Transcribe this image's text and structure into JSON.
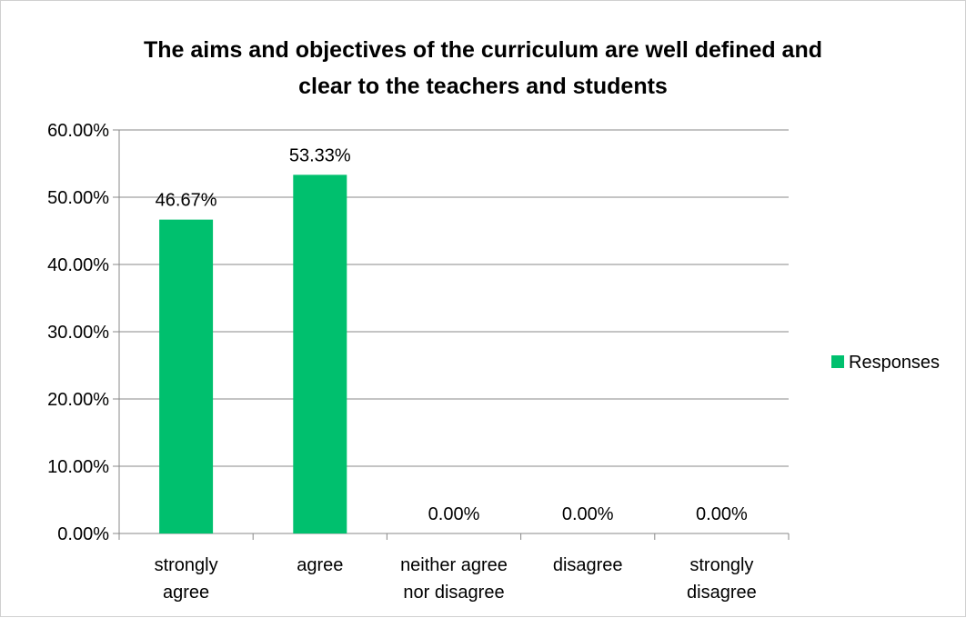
{
  "chart_data": {
    "type": "bar",
    "title_lines": [
      "The aims and objectives of the curriculum are well defined and",
      "clear to the teachers and students"
    ],
    "categories": [
      [
        "strongly",
        "agree"
      ],
      [
        "agree"
      ],
      [
        "neither agree",
        "nor disagree"
      ],
      [
        "disagree"
      ],
      [
        "strongly",
        "disagree"
      ]
    ],
    "series": [
      {
        "name": "Responses",
        "values": [
          46.67,
          53.33,
          0,
          0,
          0
        ],
        "value_labels": [
          "46.67%",
          "53.33%",
          "0.00%",
          "0.00%",
          "0.00%"
        ],
        "color": "#00c06e"
      }
    ],
    "ylim": [
      0,
      60
    ],
    "yticks": [
      0,
      10,
      20,
      30,
      40,
      50,
      60
    ],
    "ytick_labels": [
      "0.00%",
      "10.00%",
      "20.00%",
      "30.00%",
      "40.00%",
      "50.00%",
      "60.00%"
    ],
    "grid": true,
    "legend_position": "right",
    "xlabel": "",
    "ylabel": ""
  }
}
